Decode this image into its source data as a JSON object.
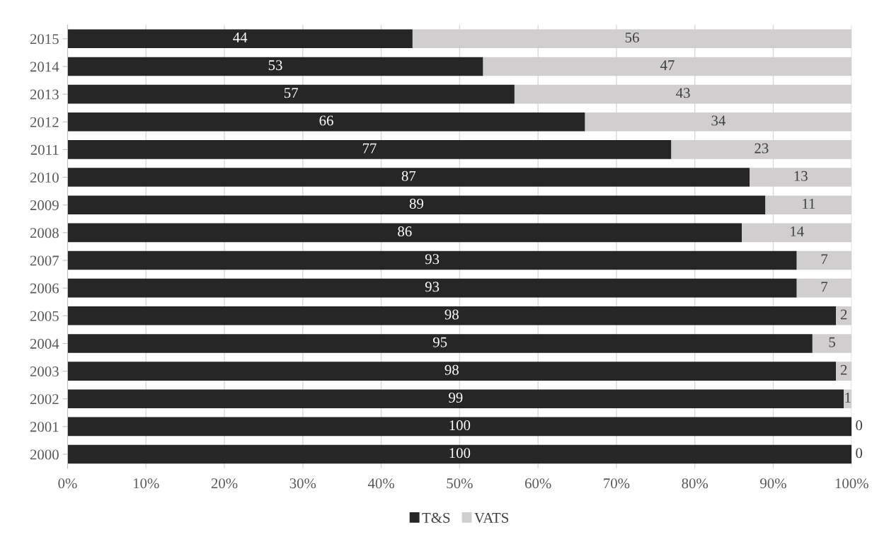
{
  "chart_data": {
    "type": "bar",
    "orientation": "horizontal",
    "stacked": true,
    "categories": [
      "2015",
      "2014",
      "2013",
      "2012",
      "2011",
      "2010",
      "2009",
      "2008",
      "2007",
      "2006",
      "2005",
      "2004",
      "2003",
      "2002",
      "2001",
      "2000"
    ],
    "series": [
      {
        "name": "T&S",
        "color": "#262626",
        "values": [
          44,
          53,
          57,
          66,
          77,
          87,
          89,
          86,
          93,
          93,
          98,
          95,
          98,
          99,
          100,
          100
        ]
      },
      {
        "name": "VATS",
        "color": "#d0cece",
        "values": [
          56,
          47,
          43,
          34,
          23,
          13,
          11,
          14,
          7,
          7,
          2,
          5,
          2,
          1,
          0,
          0
        ]
      }
    ],
    "xlim": [
      0,
      100
    ],
    "xticks": [
      {
        "value": 0,
        "label": "0%"
      },
      {
        "value": 10,
        "label": "10%"
      },
      {
        "value": 20,
        "label": "20%"
      },
      {
        "value": 30,
        "label": "30%"
      },
      {
        "value": 40,
        "label": "40%"
      },
      {
        "value": 50,
        "label": "50%"
      },
      {
        "value": 60,
        "label": "60%"
      },
      {
        "value": 70,
        "label": "70%"
      },
      {
        "value": 80,
        "label": "80%"
      },
      {
        "value": 90,
        "label": "90%"
      },
      {
        "value": 100,
        "label": "100%"
      }
    ],
    "grid": "x",
    "legend": "bottom",
    "data_labels": true
  }
}
